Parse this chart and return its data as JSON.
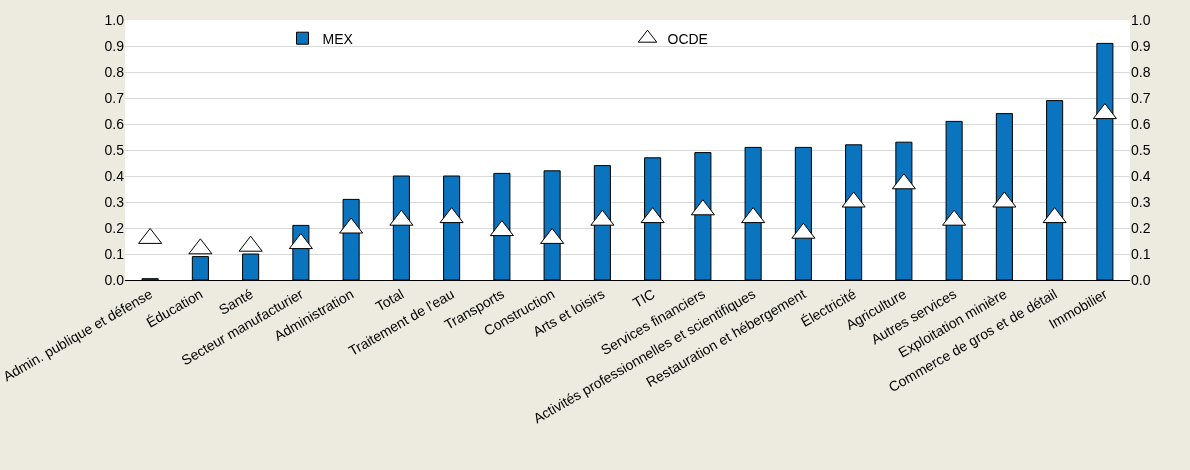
{
  "chart_data": {
    "type": "bar",
    "categories": [
      "Admin. publique et défense",
      "Éducation",
      "Santé",
      "Secteur manufacturier",
      "Administration",
      "Total",
      "Traitement de l'eau",
      "Transports",
      "Construction",
      "Arts et loisirs",
      "TIC",
      "Services financiers",
      "Activités professionnelles et scientifiques",
      "Restauration et hébergement",
      "Électricité",
      "Agriculture",
      "Autres services",
      "Exploitation minière",
      "Commerce de gros et de détail",
      "Immobilier"
    ],
    "series": [
      {
        "name": "MEX",
        "color": "#0a74bf",
        "values": [
          0.005,
          0.09,
          0.1,
          0.21,
          0.31,
          0.4,
          0.4,
          0.41,
          0.42,
          0.44,
          0.47,
          0.49,
          0.51,
          0.51,
          0.52,
          0.53,
          0.61,
          0.64,
          0.69,
          0.91
        ]
      },
      {
        "name": "OCDE",
        "type": "scatter",
        "marker": "triangle",
        "color": "#ffffff",
        "values": [
          0.16,
          0.12,
          0.13,
          0.14,
          0.2,
          0.23,
          0.24,
          0.19,
          0.16,
          0.23,
          0.24,
          0.27,
          0.24,
          0.18,
          0.3,
          0.37,
          0.23,
          0.3,
          0.24,
          0.64
        ]
      }
    ],
    "ylim": [
      0,
      1
    ],
    "yticks": [
      "0.0",
      0.1,
      0.2,
      0.3,
      0.4,
      0.5,
      0.6,
      0.7,
      0.8,
      0.9,
      "1.0"
    ],
    "y2lim": [
      0,
      1
    ],
    "y2ticks": [
      "0.0",
      0.1,
      0.2,
      0.3,
      0.4,
      0.5,
      0.6,
      0.7,
      0.8,
      0.9,
      "1.0"
    ],
    "grid": "y",
    "legend": "top"
  }
}
